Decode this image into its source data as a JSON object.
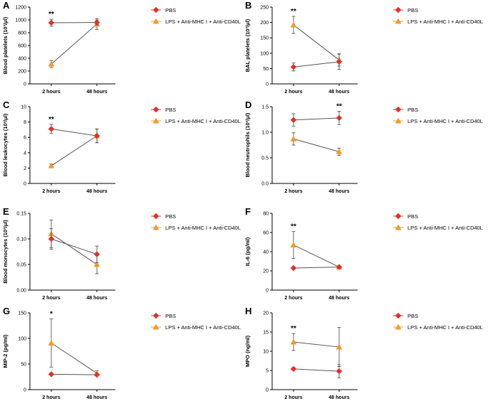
{
  "chart_data": [
    {
      "panel_label": "A",
      "type": "line",
      "ylabel": "Blood platelets (10³/μl)",
      "categories": [
        "2 hours",
        "48 hours"
      ],
      "ylim": [
        0,
        1200
      ],
      "yticks": [
        "0",
        "200",
        "400",
        "600",
        "800",
        "1000",
        "1200"
      ],
      "series": [
        {
          "name": "PBS",
          "values": [
            955,
            960
          ],
          "errors": [
            55,
            40
          ]
        },
        {
          "name": "LPS + Anti-MHC I + Anti-CD40L",
          "values": [
            310,
            935
          ],
          "errors": [
            55,
            85
          ]
        }
      ],
      "annotations": [
        {
          "category": "2 hours",
          "text": "**"
        }
      ]
    },
    {
      "panel_label": "B",
      "type": "line",
      "ylabel": "BAL platelets (10³/μl)",
      "categories": [
        "2 hours",
        "48 hours"
      ],
      "ylim": [
        0,
        250
      ],
      "yticks": [
        "0",
        "50",
        "100",
        "150",
        "200",
        "250"
      ],
      "series": [
        {
          "name": "PBS",
          "values": [
            55,
            72
          ],
          "errors": [
            13,
            25
          ]
        },
        {
          "name": "LPS + Anti-MHC I + Anti-CD40L",
          "values": [
            192,
            78
          ],
          "errors": [
            28,
            20
          ]
        }
      ],
      "annotations": [
        {
          "category": "2 hours",
          "text": "**"
        }
      ]
    },
    {
      "panel_label": "C",
      "type": "line",
      "ylabel": "Blood leukocytes (10³/μl)",
      "categories": [
        "2 hours",
        "48 hours"
      ],
      "ylim": [
        0,
        10
      ],
      "yticks": [
        "0",
        "2",
        "4",
        "6",
        "8",
        "10"
      ],
      "series": [
        {
          "name": "PBS",
          "values": [
            7.1,
            6.2
          ],
          "errors": [
            0.6,
            0.9
          ]
        },
        {
          "name": "LPS + Anti-MHC I + Anti-CD40L",
          "values": [
            2.3,
            6.2
          ],
          "errors": [
            0.25,
            0.9
          ]
        }
      ],
      "annotations": [
        {
          "category": "2 hours",
          "text": "**"
        }
      ]
    },
    {
      "panel_label": "D",
      "type": "line",
      "ylabel": "Blood neutrophils (10³/μl)",
      "categories": [
        "2 hours",
        "48 hours"
      ],
      "ylim": [
        0,
        1.5
      ],
      "yticks": [
        "0.0",
        "0.5",
        "1.0",
        "1.5"
      ],
      "series": [
        {
          "name": "PBS",
          "values": [
            1.24,
            1.28
          ],
          "errors": [
            0.12,
            0.13
          ]
        },
        {
          "name": "LPS + Anti-MHC I + Anti-CD40L",
          "values": [
            0.87,
            0.62
          ],
          "errors": [
            0.12,
            0.07
          ]
        }
      ],
      "annotations": [
        {
          "category": "48 hours",
          "text": "**"
        }
      ]
    },
    {
      "panel_label": "E",
      "type": "line",
      "ylabel": "Blood monocytes (10³/μl)",
      "categories": [
        "2 hours",
        "48 hours"
      ],
      "ylim": [
        0,
        0.15
      ],
      "yticks": [
        "0.00",
        "0.05",
        "0.10",
        "0.15"
      ],
      "series": [
        {
          "name": "PBS",
          "values": [
            0.1,
            0.07
          ],
          "errors": [
            0.02,
            0.016
          ]
        },
        {
          "name": "LPS + Anti-MHC I + Anti-CD40L",
          "values": [
            0.11,
            0.05
          ],
          "errors": [
            0.027,
            0.018
          ]
        }
      ],
      "annotations": []
    },
    {
      "panel_label": "F",
      "type": "line",
      "ylabel": "IL-6 (pg/ml)",
      "categories": [
        "2 hours",
        "48 hours"
      ],
      "ylim": [
        0,
        80
      ],
      "yticks": [
        "0",
        "20",
        "40",
        "60",
        "80"
      ],
      "series": [
        {
          "name": "PBS",
          "values": [
            23,
            24
          ],
          "errors": [
            0.5,
            0.5
          ]
        },
        {
          "name": "LPS + Anti-MHC I + Anti-CD40L",
          "values": [
            47,
            24
          ],
          "errors": [
            14,
            0.5
          ]
        }
      ],
      "annotations": [
        {
          "category": "2 hours",
          "text": "**"
        }
      ]
    },
    {
      "panel_label": "G",
      "type": "line",
      "ylabel": "MIP-2 (pg/ml)",
      "categories": [
        "2 hours",
        "48 hours"
      ],
      "ylim": [
        0,
        150
      ],
      "yticks": [
        "0",
        "50",
        "100",
        "150"
      ],
      "series": [
        {
          "name": "PBS",
          "values": [
            30,
            29
          ],
          "errors": [
            0.5,
            1
          ]
        },
        {
          "name": "LPS + Anti-MHC I + Anti-CD40L",
          "values": [
            91,
            32
          ],
          "errors": [
            47,
            5
          ]
        }
      ],
      "annotations": [
        {
          "category": "2 hours",
          "text": "*"
        }
      ]
    },
    {
      "panel_label": "H",
      "type": "line",
      "ylabel": "MPO (ng/ml)",
      "categories": [
        "2 hours",
        "48 hours"
      ],
      "ylim": [
        0,
        20
      ],
      "yticks": [
        "0",
        "5",
        "10",
        "15",
        "20"
      ],
      "series": [
        {
          "name": "PBS",
          "values": [
            5.4,
            4.8
          ],
          "errors": [
            0.3,
            1.7
          ]
        },
        {
          "name": "LPS + Anti-MHC I + Anti-CD40L",
          "values": [
            12.4,
            11.1
          ],
          "errors": [
            2.2,
            5.1
          ]
        }
      ],
      "annotations": [
        {
          "category": "2 hours",
          "text": "**"
        }
      ]
    }
  ],
  "colors": {
    "PBS": "#e0312b",
    "LPS + Anti-MHC I + Anti-CD40L": "#f19a28",
    "axis": "#000000",
    "line": "#555555"
  }
}
